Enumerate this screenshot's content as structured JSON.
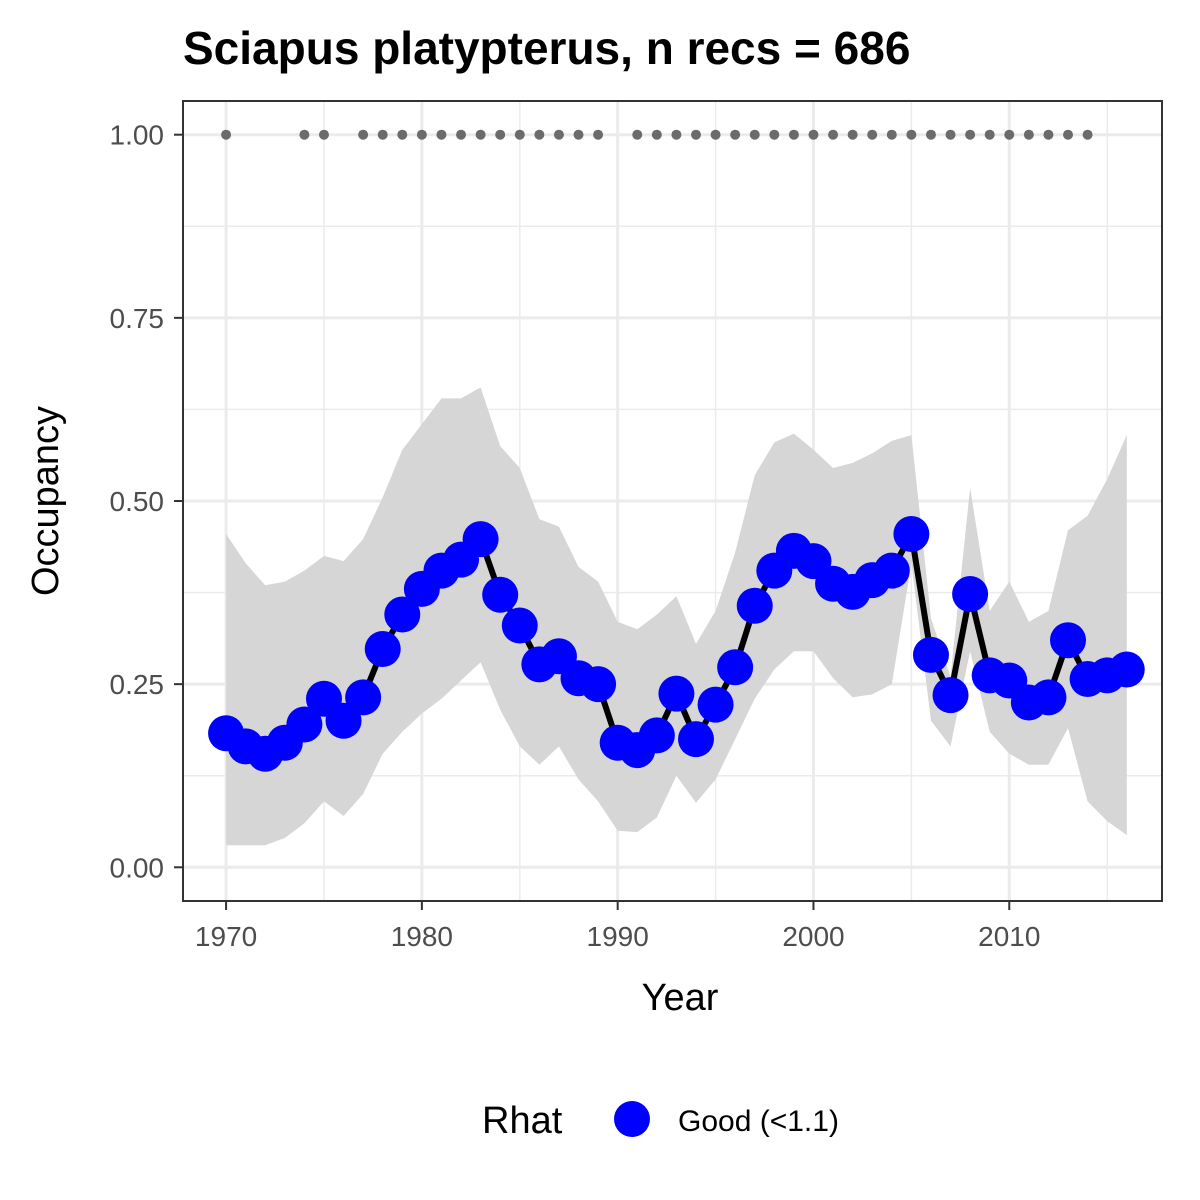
{
  "chart_data": {
    "type": "line",
    "title": "Sciapus platypterus, n recs = 686",
    "xlabel": "Year",
    "ylabel": "Occupancy",
    "xlim": [
      1967.8,
      2017.8
    ],
    "ylim": [
      -0.046,
      1.046
    ],
    "x_ticks": [
      1970,
      1980,
      1990,
      2000,
      2010
    ],
    "x_tick_labels": [
      "1970",
      "1980",
      "1990",
      "2000",
      "2010"
    ],
    "x_minor_ticks": [
      1975,
      1985,
      1995,
      2005,
      2015
    ],
    "y_ticks": [
      0,
      0.25,
      0.5,
      0.75,
      1
    ],
    "y_tick_labels": [
      "0.00",
      "0.25",
      "0.50",
      "0.75",
      "1.00"
    ],
    "y_minor_ticks": [
      0.125,
      0.375,
      0.625,
      0.875
    ],
    "grid": true,
    "legend": {
      "title": "Rhat",
      "position": "bottom",
      "entries": [
        {
          "label": "Good (<1.1)",
          "color": "#0000ff"
        }
      ]
    },
    "colors": {
      "points": "#0000ff",
      "line": "#000000",
      "ribbon": "#d6d6d6",
      "records": "#6b6b6b",
      "grid": "#ebebeb",
      "border": "#333333"
    },
    "x": [
      1970,
      1971,
      1972,
      1973,
      1974,
      1975,
      1976,
      1977,
      1978,
      1979,
      1980,
      1981,
      1982,
      1983,
      1984,
      1985,
      1986,
      1987,
      1988,
      1989,
      1990,
      1991,
      1992,
      1993,
      1994,
      1995,
      1996,
      1997,
      1998,
      1999,
      2000,
      2001,
      2002,
      2003,
      2004,
      2005,
      2006,
      2007,
      2008,
      2009,
      2010,
      2011,
      2012,
      2013,
      2014,
      2015,
      2016
    ],
    "series": [
      {
        "name": "Good (<1.1)",
        "values": [
          0.183,
          0.165,
          0.155,
          0.17,
          0.195,
          0.23,
          0.2,
          0.232,
          0.298,
          0.345,
          0.38,
          0.405,
          0.42,
          0.448,
          0.372,
          0.33,
          0.277,
          0.288,
          0.258,
          0.25,
          0.17,
          0.16,
          0.18,
          0.237,
          0.175,
          0.222,
          0.273,
          0.357,
          0.405,
          0.432,
          0.418,
          0.387,
          0.376,
          0.392,
          0.405,
          0.455,
          0.29,
          0.235,
          0.373,
          0.262,
          0.255,
          0.225,
          0.232,
          0.31,
          0.257,
          0.262,
          0.27
        ]
      }
    ],
    "ribbon": {
      "lower": [
        0.03,
        0.03,
        0.03,
        0.04,
        0.06,
        0.09,
        0.07,
        0.1,
        0.155,
        0.185,
        0.21,
        0.23,
        0.255,
        0.28,
        0.215,
        0.165,
        0.14,
        0.165,
        0.12,
        0.09,
        0.05,
        0.048,
        0.068,
        0.125,
        0.088,
        0.12,
        0.175,
        0.23,
        0.27,
        0.295,
        0.295,
        0.258,
        0.232,
        0.236,
        0.25,
        0.415,
        0.2,
        0.165,
        0.295,
        0.185,
        0.155,
        0.14,
        0.14,
        0.19,
        0.09,
        0.063,
        0.044
      ],
      "upper": [
        0.455,
        0.415,
        0.385,
        0.39,
        0.405,
        0.425,
        0.418,
        0.448,
        0.505,
        0.57,
        0.605,
        0.64,
        0.64,
        0.655,
        0.575,
        0.545,
        0.475,
        0.465,
        0.41,
        0.39,
        0.335,
        0.325,
        0.345,
        0.37,
        0.305,
        0.35,
        0.43,
        0.535,
        0.58,
        0.592,
        0.57,
        0.545,
        0.552,
        0.565,
        0.582,
        0.59,
        0.34,
        0.26,
        0.518,
        0.35,
        0.39,
        0.335,
        0.35,
        0.46,
        0.48,
        0.53,
        0.59
      ]
    },
    "records": {
      "y": 1,
      "years": [
        1970,
        1974,
        1975,
        1977,
        1978,
        1979,
        1980,
        1981,
        1982,
        1983,
        1984,
        1985,
        1986,
        1987,
        1988,
        1989,
        1991,
        1992,
        1993,
        1994,
        1995,
        1996,
        1997,
        1998,
        1999,
        2000,
        2001,
        2002,
        2003,
        2004,
        2005,
        2006,
        2007,
        2008,
        2009,
        2010,
        2011,
        2012,
        2013,
        2014
      ]
    }
  }
}
